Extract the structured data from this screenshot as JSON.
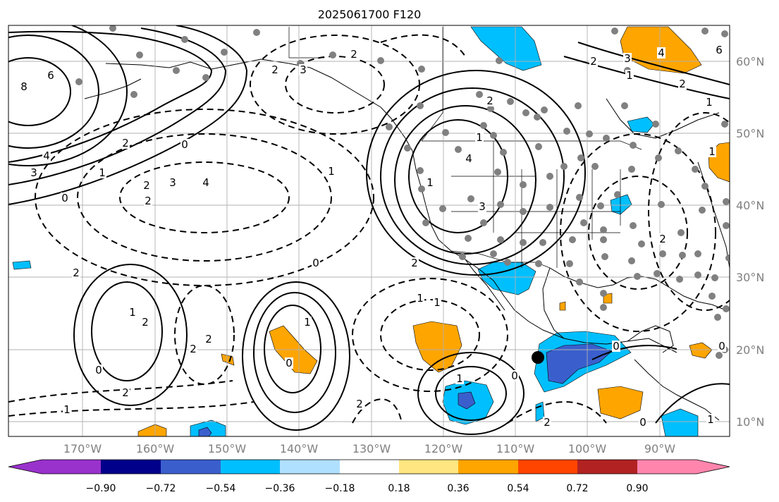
{
  "title": "2025061700 F120",
  "lat_labels": [
    "60°N",
    "50°N",
    "40°N",
    "30°N",
    "20°N",
    "10°N"
  ],
  "lon_labels": [
    "170°W",
    "160°W",
    "150°W",
    "140°W",
    "130°W",
    "120°W",
    "110°W",
    "100°W",
    "90°W"
  ],
  "colorbar": {
    "colors": [
      "#9932CC",
      "#00008B",
      "#3A5FCD",
      "#00BFFF",
      "#B0E0FF",
      "#FFFFFF",
      "#FFE680",
      "#FFA500",
      "#FF4500",
      "#B22222",
      "#FF85AD"
    ],
    "tick_labels": [
      "−0.90",
      "−0.72",
      "−0.54",
      "−0.36",
      "−0.18",
      "0.18",
      "0.36",
      "0.54",
      "0.72",
      "0.90"
    ]
  },
  "contour_labels": {
    "pos": [
      "6",
      "8",
      "4",
      "3",
      "2",
      "1",
      "0",
      "0",
      "2",
      "1",
      "1",
      "2",
      "0",
      "1",
      "0",
      "0",
      "2",
      "4",
      "3",
      "0",
      "2",
      "1",
      "2",
      "3",
      "4",
      "6",
      "1",
      "0",
      "0",
      "0"
    ],
    "neg": [
      "2",
      "3",
      "4",
      "2",
      "3",
      "2",
      "2",
      "1",
      "1",
      "1",
      "2",
      "2",
      "1",
      "1",
      "2",
      "2",
      "1",
      "2",
      "1",
      "1",
      "2",
      "2"
    ]
  },
  "colors": {
    "grid": "#b0b0b0",
    "lightblue": "#00BFFF",
    "darkblue": "#3A5FCD",
    "orange": "#FFA500",
    "station": "#808080"
  }
}
